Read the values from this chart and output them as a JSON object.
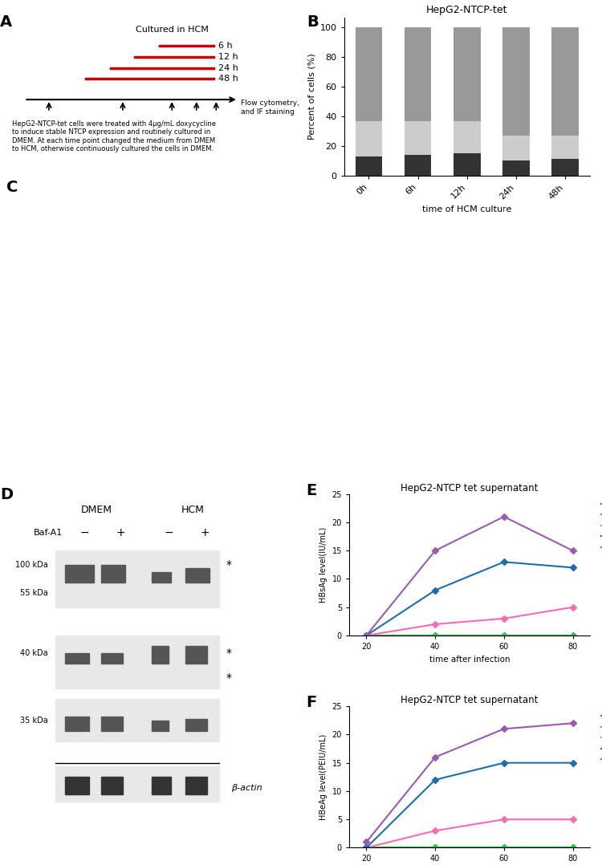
{
  "panel_A": {
    "timeline_label": "Cultured in HCM",
    "time_labels": [
      "6 h",
      "12 h",
      "24 h",
      "48 h"
    ],
    "flow_label": "Flow cytometry,\nand IF staining",
    "caption": "HepG2-NTCP-tet cells were treated with 4μg/mL doxycycline\nto induce stable NTCP expression and routinely cultured in\nDMEM. At each time point changed the medium from DMEM\nto HCM, otherwise continuously cultured the cells in DMEM."
  },
  "panel_B": {
    "title": "HepG2-NTCP-tet",
    "xlabel": "time of HCM culture",
    "ylabel": "Percent of cells (%)",
    "categories": [
      "0h",
      "6h",
      "12h",
      "24h",
      "48h"
    ],
    "G0G1": [
      63,
      63,
      63,
      73,
      73
    ],
    "S": [
      24,
      23,
      22,
      17,
      16
    ],
    "G2M": [
      13,
      14,
      15,
      10,
      11
    ],
    "colors": {
      "G0G1": "#999999",
      "S": "#cccccc",
      "G2M": "#333333"
    }
  },
  "panel_E": {
    "title": "HepG2-NTCP tet supernatant",
    "xlabel": "time after infection",
    "ylabel": "HBsAg level(IU/mL)",
    "x": [
      20,
      40,
      60,
      80
    ],
    "NC": [
      0,
      0,
      0,
      0
    ],
    "DMEM_200": [
      0,
      0,
      0,
      0
    ],
    "HCM_200": [
      0,
      2,
      3,
      5
    ],
    "DMEM_500": [
      0,
      8,
      13,
      12
    ],
    "HCM_500": [
      0,
      15,
      21,
      15
    ],
    "ylim": [
      0,
      25
    ],
    "colors": {
      "NC": "#e63946",
      "DMEM_200": "#2dc653",
      "HCM_200": "#ff69b4",
      "DMEM_500": "#1a6faf",
      "HCM_500": "#9b59b6"
    }
  },
  "panel_F": {
    "title": "HepG2-NTCP tet supernatant",
    "xlabel": "time after infection",
    "ylabel": "HBeAg level(PEIU/mL)",
    "x": [
      20,
      40,
      60,
      80
    ],
    "NC": [
      0,
      0,
      0,
      0
    ],
    "DMEM_200": [
      0,
      0,
      0,
      0
    ],
    "HCM_200": [
      0,
      3,
      5,
      5
    ],
    "DMEM_500": [
      0,
      12,
      15,
      15
    ],
    "HCM_500": [
      1,
      16,
      21,
      22
    ],
    "ylim": [
      0,
      25
    ],
    "colors": {
      "NC": "#e63946",
      "DMEM_200": "#2dc653",
      "HCM_200": "#ff69b4",
      "DMEM_500": "#1a6faf",
      "HCM_500": "#9b59b6"
    }
  }
}
